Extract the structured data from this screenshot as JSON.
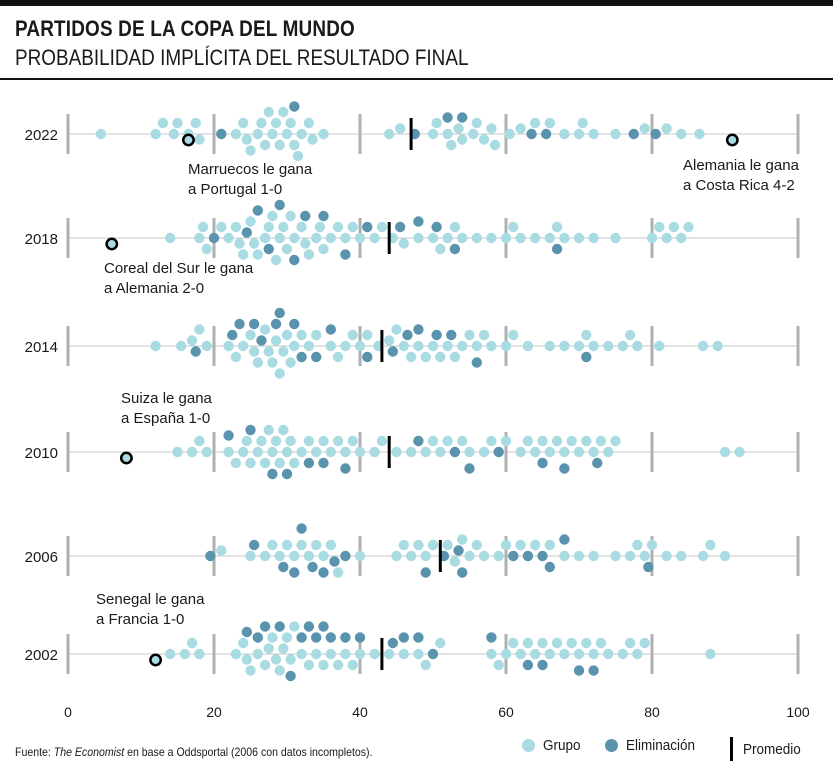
{
  "header": {
    "title": "PARTIDOS DE LA COPA DEL MUNDO",
    "subtitle": "PROBABILIDAD IMPLÍCITA DEL RESULTADO FINAL"
  },
  "footer": {
    "source_prefix": "Fuente: ",
    "source_italic": "The Economist",
    "source_rest": " en base a Oddsportal (2006 con datos incompletos)."
  },
  "legend": {
    "group_label": "Grupo",
    "knockout_label": "Eliminación",
    "mean_label": "Promedio"
  },
  "colors": {
    "group": "#a9dbe3",
    "knockout": "#5a93ad",
    "axis_line": "#c8c8c8",
    "tick": "#b0b0b0",
    "mean": "#000000",
    "highlight_stroke": "#000000"
  },
  "chart_data": {
    "type": "scatter",
    "style": "beeswarm",
    "xlim": [
      0,
      100
    ],
    "x_ticks": [
      0,
      20,
      40,
      60,
      80,
      100
    ],
    "grid": false,
    "legend_position": "bottom-right",
    "years": [
      {
        "year": "2022",
        "mean": 47,
        "group": [
          4.5,
          12,
          13,
          14.5,
          15,
          16.5,
          17.5,
          18,
          23,
          24,
          24.5,
          25,
          26,
          26.5,
          27,
          27.5,
          28,
          28.5,
          29,
          29.5,
          30,
          30.5,
          31,
          31.5,
          32,
          33,
          33.5,
          35,
          44,
          45.5,
          50,
          50.5,
          52,
          52.5,
          53.5,
          54,
          55.5,
          56,
          57,
          58,
          58.5,
          60.5,
          62,
          64,
          66,
          68,
          70,
          70.5,
          72,
          75,
          79,
          82,
          84,
          86.5
        ],
        "knockout": [
          21,
          31,
          47.5,
          52,
          54,
          63.5,
          65.5,
          77.5,
          80.5
        ],
        "highlights": [
          {
            "x": 16.5,
            "label": "Marruecos le gana\na Portugal 1-0"
          },
          {
            "x": 91,
            "label": "Alemania le gana\na Costa Rica 4-2"
          }
        ]
      },
      {
        "year": "2018",
        "mean": 44,
        "group": [
          14,
          18,
          18.5,
          19,
          21,
          22,
          23,
          23.5,
          24,
          25,
          25.5,
          26,
          27,
          27.5,
          28,
          28.5,
          29,
          29.5,
          30,
          30.5,
          31,
          32,
          32.5,
          33,
          34,
          34.5,
          35,
          36,
          37,
          38,
          39,
          40,
          42,
          43,
          44.5,
          46,
          48,
          50,
          51,
          52,
          53,
          54,
          56,
          58,
          60,
          61,
          62,
          64,
          66,
          67,
          68,
          70,
          72,
          75,
          80,
          81,
          82,
          83,
          84,
          85
        ],
        "knockout": [
          20,
          24.5,
          26,
          27.5,
          29,
          31,
          32.5,
          35,
          38,
          41,
          45.5,
          48,
          50.5,
          53,
          67
        ],
        "highlights": [
          {
            "x": 6,
            "label": "Coreal del Sur le gana\na Alemania 2-0"
          }
        ]
      },
      {
        "year": "2014",
        "mean": 43,
        "group": [
          12,
          15.5,
          17,
          18,
          19,
          22,
          23,
          24,
          25,
          25.5,
          26,
          27,
          27.5,
          28,
          28.5,
          29,
          29.5,
          30,
          30.5,
          31,
          32,
          33,
          34,
          36,
          37,
          38,
          39,
          40,
          41,
          42.5,
          44,
          45,
          46,
          47,
          48,
          49,
          50,
          51,
          52,
          53,
          54,
          55,
          56,
          57,
          58,
          60,
          61,
          63,
          66,
          68,
          70,
          71,
          72,
          74,
          76,
          77,
          78,
          81,
          87,
          89
        ],
        "knockout": [
          17.5,
          22.5,
          23.5,
          25.5,
          26.5,
          28.5,
          29,
          31,
          32,
          34,
          36,
          41,
          44.5,
          46.5,
          48,
          50.5,
          52.5,
          56,
          71
        ],
        "highlights": []
      },
      {
        "year": "2010",
        "mean": 44,
        "group": [
          15,
          17,
          18,
          19,
          22,
          23,
          24,
          24.5,
          25,
          26,
          26.5,
          27,
          27.5,
          28,
          28.5,
          29,
          29.5,
          30,
          30.5,
          31,
          32,
          33,
          34,
          35,
          36,
          37,
          38,
          39,
          40,
          42,
          43,
          45,
          47,
          49,
          50,
          51,
          52,
          54,
          55,
          57,
          58,
          60,
          62,
          63,
          64,
          65,
          66,
          67,
          68,
          69,
          70,
          71,
          72,
          73,
          74,
          75,
          90,
          92
        ],
        "knockout": [
          22,
          25,
          28,
          30,
          33,
          35,
          38,
          48,
          53,
          55,
          59,
          65,
          68,
          72.5
        ],
        "highlights": [
          {
            "x": 8,
            "label": "Suiza le gana\na España 1-0"
          }
        ]
      },
      {
        "year": "2006",
        "mean": 51,
        "group": [
          21,
          25,
          27,
          28,
          29,
          30,
          31,
          32,
          33,
          34,
          35,
          36,
          37,
          40,
          45,
          46,
          47,
          48,
          49,
          50,
          52,
          53,
          54,
          55,
          56,
          57,
          59,
          60,
          62,
          64,
          66,
          68,
          70,
          72,
          75,
          77,
          78,
          79,
          80,
          82,
          84,
          87,
          88,
          90
        ],
        "knockout": [
          19.5,
          25.5,
          29.5,
          31,
          32,
          33.5,
          35,
          36.5,
          38,
          49,
          51.5,
          53.5,
          54,
          61,
          63,
          65,
          66,
          68,
          79.5
        ],
        "highlights": []
      },
      {
        "year": "2002",
        "mean": 43,
        "group": [
          14,
          16,
          17,
          18,
          23,
          24,
          24.5,
          25,
          26,
          27,
          27.5,
          28,
          28.5,
          29,
          29.5,
          30,
          30.5,
          31,
          32,
          33,
          34,
          35,
          36,
          37,
          38,
          39,
          40,
          42,
          44,
          46,
          48,
          49,
          51,
          58,
          59,
          60,
          61,
          62,
          63,
          64,
          65,
          66,
          67,
          68,
          69,
          70,
          71,
          72,
          73,
          74,
          76,
          77,
          78,
          79,
          88
        ],
        "knockout": [
          24.5,
          26,
          27,
          29,
          30.5,
          32,
          33,
          34,
          35,
          36,
          38,
          40,
          44.5,
          46,
          48,
          50,
          58,
          63,
          65,
          70,
          72
        ],
        "highlights": [
          {
            "x": 12,
            "label": "Senegal le gana\na Francia 1-0"
          }
        ]
      }
    ]
  }
}
